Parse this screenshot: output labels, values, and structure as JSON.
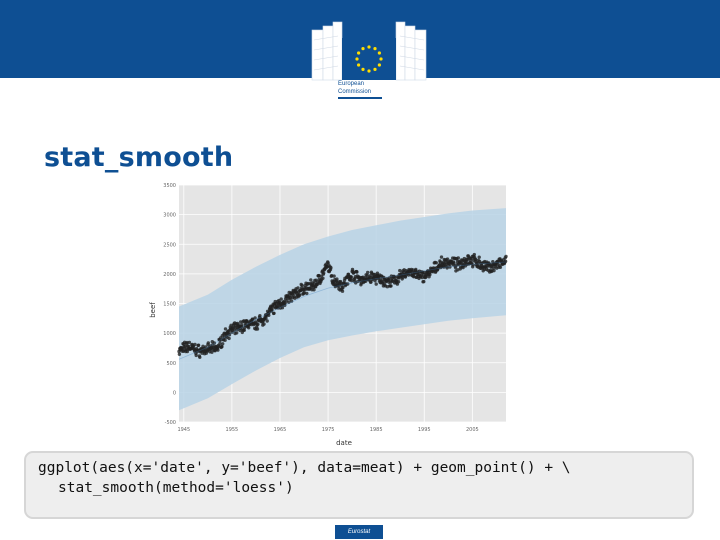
{
  "header": {
    "logo_line1": "European",
    "logo_line2": "Commission",
    "colors": {
      "band": "#0e4f93",
      "stars": "#ffdd00"
    }
  },
  "slide": {
    "title": "stat_smooth",
    "code_line1": "ggplot(aes(x='date', y='beef'), data=meat) + geom_point() + \\",
    "code_line2": "stat_smooth(method='loess')"
  },
  "footer": {
    "badge": "Eurostat"
  },
  "chart_data": {
    "type": "scatter",
    "xlabel": "date",
    "ylabel": "beef",
    "xlim": [
      1944,
      2012
    ],
    "ylim": [
      -500,
      3500
    ],
    "x_ticks": [
      "1945",
      "1955",
      "1965",
      "1975",
      "1985",
      "1995",
      "2005"
    ],
    "y_ticks": [
      "-500",
      "0",
      "500",
      "1000",
      "1500",
      "2000",
      "2500",
      "3000",
      "3500"
    ],
    "grid": true,
    "background": "#e5e5e5",
    "point_color": "#222222",
    "ribbon_color": "#b8d3e6",
    "smooth": {
      "method": "loess",
      "x": [
        1944,
        1950,
        1955,
        1960,
        1965,
        1970,
        1975,
        1980,
        1985,
        1990,
        1995,
        2000,
        2005,
        2012
      ],
      "fit": [
        560,
        760,
        1000,
        1230,
        1430,
        1620,
        1760,
        1850,
        1920,
        1980,
        2050,
        2120,
        2160,
        2200
      ],
      "lower": [
        -300,
        -100,
        140,
        370,
        580,
        760,
        880,
        960,
        1030,
        1090,
        1150,
        1210,
        1250,
        1300
      ],
      "upper": [
        1450,
        1650,
        1900,
        2120,
        2320,
        2500,
        2630,
        2740,
        2820,
        2900,
        2960,
        3020,
        3070,
        3110
      ]
    },
    "points_trend": {
      "x": [
        1944,
        1946,
        1948,
        1950,
        1952,
        1954,
        1956,
        1958,
        1960,
        1962,
        1964,
        1966,
        1968,
        1970,
        1972,
        1974,
        1975,
        1976,
        1978,
        1980,
        1982,
        1984,
        1986,
        1988,
        1990,
        1992,
        1994,
        1996,
        1998,
        2000,
        2002,
        2004,
        2006,
        2008,
        2010,
        2012
      ],
      "y": [
        700,
        780,
        700,
        720,
        760,
        1020,
        1070,
        1150,
        1160,
        1270,
        1450,
        1550,
        1650,
        1750,
        1800,
        2000,
        2150,
        1900,
        1800,
        2000,
        1900,
        1950,
        1900,
        1850,
        1950,
        2050,
        1950,
        2000,
        2150,
        2200,
        2150,
        2250,
        2200,
        2100,
        2150,
        2200
      ]
    },
    "points_spread": 75,
    "points_per_year": 12
  }
}
